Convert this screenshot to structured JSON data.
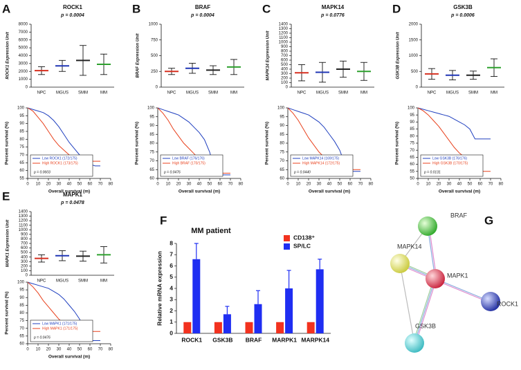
{
  "chart_data": [
    {
      "type": "dotplot",
      "label": "A",
      "title": "ROCK1",
      "annotation": "p = 0.0004",
      "y_label": "ROCK1 Expression Unit",
      "categories": [
        "NPC",
        "MGUS",
        "SMM",
        "MM"
      ],
      "colors": [
        "#d62f1f",
        "#1f35b5",
        "#222222",
        "#2ca02c"
      ],
      "values": [
        2100,
        2700,
        3400,
        2900
      ],
      "errors": [
        500,
        700,
        1900,
        1300
      ],
      "ylim": [
        0,
        8000
      ],
      "yticks": [
        0,
        1000,
        2000,
        3000,
        4000,
        5000,
        6000,
        7000,
        8000
      ]
    },
    {
      "type": "survival",
      "y_label": "Percent survival (%)",
      "x_label": "Overall survival (m)",
      "annotation": "p = 0.0603",
      "x": [
        0,
        5,
        10,
        15,
        20,
        25,
        30,
        35,
        40,
        45,
        50,
        55,
        60,
        65,
        70
      ],
      "series": [
        {
          "name": "Low ROCK1 (172/175)",
          "color": "#1f3fbf",
          "values": [
            100,
            99,
            98,
            97,
            95,
            92,
            88,
            83,
            78,
            74,
            70,
            66,
            64,
            63,
            63
          ]
        },
        {
          "name": "High ROCK1 (173/175)",
          "color": "#e8401c",
          "values": [
            100,
            98,
            94,
            90,
            85,
            80,
            76,
            73,
            70,
            68,
            67,
            66,
            66,
            66,
            66
          ]
        }
      ],
      "xlim": [
        0,
        80
      ],
      "xticks": [
        0,
        10,
        20,
        30,
        40,
        50,
        60,
        70,
        80
      ],
      "ylim": [
        55,
        100
      ],
      "yticks": [
        55,
        60,
        65,
        70,
        75,
        80,
        85,
        90,
        95,
        100
      ]
    },
    {
      "type": "dotplot",
      "label": "B",
      "title": "BRAF",
      "annotation": "p = 0.0004",
      "y_label": "BRAF Expression Unit",
      "categories": [
        "NPC",
        "MGUS",
        "SMM",
        "MM"
      ],
      "colors": [
        "#d62f1f",
        "#1f35b5",
        "#222222",
        "#2ca02c"
      ],
      "values": [
        250,
        300,
        270,
        320
      ],
      "errors": [
        50,
        80,
        70,
        120
      ],
      "ylim": [
        0,
        1000
      ],
      "yticks": [
        0,
        250,
        500,
        750,
        1000
      ]
    },
    {
      "type": "survival",
      "y_label": "Percent survival (%)",
      "x_label": "Overall survival (m)",
      "annotation": "p = 0.0476",
      "x": [
        0,
        5,
        10,
        15,
        20,
        25,
        30,
        35,
        40,
        45,
        50,
        55,
        60,
        65,
        70
      ],
      "series": [
        {
          "name": "Low BRAF (176/176)",
          "color": "#1f3fbf",
          "values": [
            100,
            99,
            98,
            97,
            96,
            94,
            92,
            89,
            86,
            82,
            75,
            64,
            62,
            62,
            62
          ]
        },
        {
          "name": "High BRAF (170/175)",
          "color": "#e8401c",
          "values": [
            100,
            97,
            93,
            88,
            84,
            80,
            77,
            74,
            71,
            68,
            66,
            64,
            63,
            63,
            63
          ]
        }
      ],
      "xlim": [
        0,
        80
      ],
      "xticks": [
        0,
        10,
        20,
        30,
        40,
        50,
        60,
        70,
        80
      ],
      "ylim": [
        60,
        100
      ],
      "yticks": [
        60,
        65,
        70,
        75,
        80,
        85,
        90,
        95,
        100
      ]
    },
    {
      "type": "dotplot",
      "label": "C",
      "title": "MAPK14",
      "annotation": "p = 0.0776",
      "y_label": "MAPK14 Expression Unit",
      "categories": [
        "NPC",
        "MGUS",
        "SMM",
        "MM"
      ],
      "colors": [
        "#d62f1f",
        "#1f35b5",
        "#222222",
        "#2ca02c"
      ],
      "values": [
        320,
        330,
        400,
        350
      ],
      "errors": [
        180,
        220,
        180,
        200
      ],
      "ylim": [
        0,
        1400
      ],
      "yticks": [
        0,
        100,
        200,
        300,
        400,
        500,
        600,
        700,
        800,
        900,
        1000,
        1100,
        1200,
        1300,
        1400
      ]
    },
    {
      "type": "survival",
      "y_label": "Percent survival (%)",
      "x_label": "Overall survival (m)",
      "annotation": "p = 0.0440",
      "x": [
        0,
        5,
        10,
        15,
        20,
        25,
        30,
        35,
        40,
        45,
        50,
        55,
        60,
        65,
        70
      ],
      "series": [
        {
          "name": "Low MAPK14 (169/175)",
          "color": "#1f3fbf",
          "values": [
            100,
            99,
            98,
            97,
            96,
            94,
            92,
            89,
            85,
            81,
            76,
            68,
            64,
            64,
            64
          ]
        },
        {
          "name": "High MAPK14 (172/175)",
          "color": "#e8401c",
          "values": [
            100,
            97,
            93,
            88,
            83,
            79,
            75,
            72,
            69,
            67,
            66,
            65,
            65,
            65,
            65
          ]
        }
      ],
      "xlim": [
        0,
        80
      ],
      "xticks": [
        0,
        10,
        20,
        30,
        40,
        50,
        60,
        70,
        80
      ],
      "ylim": [
        60,
        100
      ],
      "yticks": [
        60,
        65,
        70,
        75,
        80,
        85,
        90,
        95,
        100
      ]
    },
    {
      "type": "dotplot",
      "label": "D",
      "title": "GSK3B",
      "annotation": "p = 0.0006",
      "y_label": "GSK3B Expression Unit",
      "categories": [
        "NPC",
        "MGUS",
        "SMM",
        "MM"
      ],
      "colors": [
        "#d62f1f",
        "#1f35b5",
        "#222222",
        "#2ca02c"
      ],
      "values": [
        420,
        380,
        380,
        620
      ],
      "errors": [
        170,
        150,
        130,
        280
      ],
      "ylim": [
        0,
        2000
      ],
      "yticks": [
        0,
        500,
        1000,
        1500,
        2000
      ]
    },
    {
      "type": "survival",
      "y_label": "Percent survival (%)",
      "x_label": "Overall survival (m)",
      "annotation": "p = 0.0131",
      "x": [
        0,
        5,
        10,
        15,
        20,
        25,
        30,
        35,
        40,
        45,
        50,
        55,
        60,
        65,
        70
      ],
      "series": [
        {
          "name": "Low GSK3B (176/176)",
          "color": "#1f3fbf",
          "values": [
            100,
            99,
            98,
            97,
            96,
            95,
            94,
            92,
            90,
            88,
            85,
            78,
            78,
            78,
            78
          ]
        },
        {
          "name": "High GSK3B (170/175)",
          "color": "#e8401c",
          "values": [
            100,
            98,
            95,
            91,
            87,
            82,
            77,
            72,
            68,
            65,
            62,
            57,
            55,
            55,
            55
          ]
        }
      ],
      "xlim": [
        0,
        80
      ],
      "xticks": [
        0,
        10,
        20,
        30,
        40,
        50,
        60,
        70,
        80
      ],
      "ylim": [
        50,
        100
      ],
      "yticks": [
        50,
        55,
        60,
        65,
        70,
        75,
        80,
        85,
        90,
        95,
        100
      ]
    },
    {
      "type": "dotplot",
      "label": "E",
      "title": "MAPK1",
      "annotation": "p = 0.0478",
      "y_label": "MAPK1 Expression Unit",
      "categories": [
        "NPC",
        "MGUS",
        "SMM",
        "MM"
      ],
      "colors": [
        "#d62f1f",
        "#1f35b5",
        "#222222",
        "#2ca02c"
      ],
      "values": [
        370,
        430,
        420,
        450
      ],
      "errors": [
        80,
        110,
        110,
        180
      ],
      "ylim": [
        0,
        1400
      ],
      "yticks": [
        0,
        100,
        200,
        300,
        400,
        500,
        600,
        700,
        800,
        900,
        1000,
        1100,
        1200,
        1300,
        1400
      ]
    },
    {
      "type": "survival",
      "y_label": "Percent survival (%)",
      "x_label": "Overall survival (m)",
      "annotation": "p = 0.0476",
      "x": [
        0,
        5,
        10,
        15,
        20,
        25,
        30,
        35,
        40,
        45,
        50,
        55,
        60,
        65,
        70
      ],
      "series": [
        {
          "name": "Low MAPK1 (171/175)",
          "color": "#1f3fbf",
          "values": [
            100,
            99,
            98,
            97,
            96,
            94,
            92,
            89,
            85,
            81,
            76,
            68,
            62,
            62,
            62
          ]
        },
        {
          "name": "High MAPK1 (171/175)",
          "color": "#e8401c",
          "values": [
            100,
            97,
            93,
            88,
            84,
            80,
            76,
            73,
            71,
            70,
            69,
            69,
            68,
            68,
            68
          ]
        }
      ],
      "xlim": [
        0,
        80
      ],
      "xticks": [
        0,
        10,
        20,
        30,
        40,
        50,
        60,
        70,
        80
      ],
      "ylim": [
        60,
        100
      ],
      "yticks": [
        60,
        65,
        70,
        75,
        80,
        85,
        90,
        95,
        100
      ]
    },
    {
      "type": "bar",
      "label": "F",
      "title": "MM patient",
      "y_label": "Relative mRNA expression",
      "categories": [
        "ROCK1",
        "GSK3B",
        "BRAF",
        "MARPK1",
        "MARPK14"
      ],
      "series": [
        {
          "name": "CD138⁺",
          "color": "#f2321f",
          "values": [
            1,
            1,
            1,
            1,
            1
          ]
        },
        {
          "name": "SP/LC",
          "color": "#1f2ef2",
          "values": [
            6.6,
            1.7,
            2.6,
            4,
            5.7
          ],
          "errors": [
            1.4,
            0.7,
            1.2,
            1.6,
            0.9
          ]
        }
      ],
      "ylim": [
        0,
        8
      ],
      "yticks": [
        0,
        1,
        2,
        3,
        4,
        5,
        6,
        7,
        8
      ]
    }
  ],
  "network": {
    "label": "G",
    "nodes": [
      {
        "label": "BRAF"
      },
      {
        "label": "MAPK14"
      },
      {
        "label": "MAPK1"
      },
      {
        "label": "ROCK1"
      },
      {
        "label": "GSK3B"
      }
    ]
  }
}
